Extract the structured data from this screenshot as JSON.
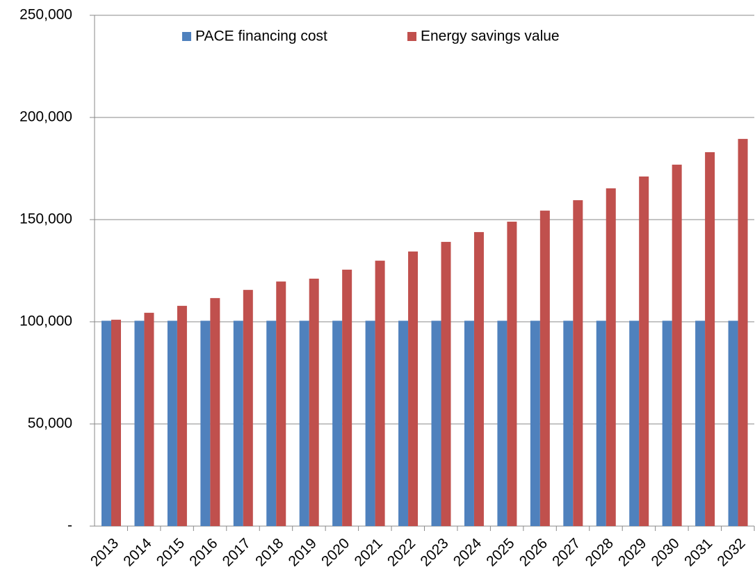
{
  "chart_data": {
    "type": "bar",
    "categories": [
      "2013",
      "2014",
      "2015",
      "2016",
      "2017",
      "2018",
      "2019",
      "2020",
      "2021",
      "2022",
      "2023",
      "2024",
      "2025",
      "2026",
      "2027",
      "2028",
      "2029",
      "2030",
      "2031",
      "2032"
    ],
    "series": [
      {
        "name": "PACE financing cost",
        "color": "#4f81bd",
        "values": [
          100500,
          100500,
          100500,
          100500,
          100500,
          100500,
          100500,
          100500,
          100500,
          100500,
          100500,
          100500,
          100500,
          100500,
          100500,
          100500,
          100500,
          100500,
          100500,
          100500
        ]
      },
      {
        "name": "Energy savings value",
        "color": "#c0504d",
        "values": [
          101000,
          104400,
          107800,
          111600,
          115600,
          119700,
          121100,
          125500,
          129900,
          134400,
          139100,
          143900,
          149000,
          154400,
          159500,
          165300,
          171100,
          176900,
          183000,
          189500
        ]
      }
    ],
    "ylim": [
      0,
      250000
    ],
    "yticks": [
      {
        "value": 0,
        "label": "-"
      },
      {
        "value": 50000,
        "label": "50,000"
      },
      {
        "value": 100000,
        "label": "100,000"
      },
      {
        "value": 150000,
        "label": "150,000"
      },
      {
        "value": 200000,
        "label": "200,000"
      },
      {
        "value": 250000,
        "label": "250,000"
      }
    ],
    "grid": true,
    "legend": "top"
  }
}
